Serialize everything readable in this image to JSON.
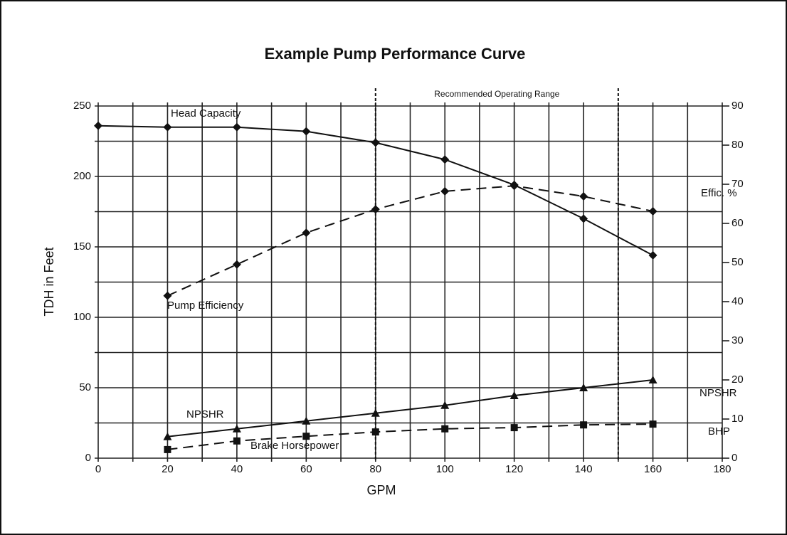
{
  "chart_data": {
    "type": "line",
    "title": "Example Pump Performance Curve",
    "x_label": "GPM",
    "y_label": "TDH in Feet",
    "x": [
      0,
      20,
      40,
      60,
      80,
      100,
      120,
      140,
      160
    ],
    "series": [
      {
        "name": "Head Capacity",
        "color": "#111111",
        "marker": "diamond",
        "dash": "solid",
        "axis": "y",
        "values": [
          236,
          235,
          235,
          232,
          224,
          212,
          194,
          170,
          144
        ]
      },
      {
        "name": "Pump Efficiency",
        "color": "#111111",
        "marker": "diamond",
        "dash": "dashed",
        "axis": "y2",
        "values": [
          null,
          41.5,
          49.5,
          57.6,
          63.6,
          68.2,
          69.6,
          66.9,
          63.1
        ]
      },
      {
        "name": "NPSHR",
        "color": "#111111",
        "marker": "triangle",
        "dash": "solid",
        "axis": "y2",
        "values": [
          null,
          5.5,
          7.5,
          9.5,
          11.5,
          13.5,
          16,
          18,
          20
        ]
      },
      {
        "name": "Brake Horsepower",
        "color": "#111111",
        "marker": "square",
        "dash": "dashed",
        "axis": "y2",
        "values": [
          null,
          2.2,
          4.4,
          5.6,
          6.7,
          7.5,
          7.8,
          8.5,
          8.7
        ]
      }
    ],
    "xlim": [
      0,
      180
    ],
    "xticks": [
      0,
      20,
      40,
      60,
      80,
      100,
      120,
      140,
      160,
      180
    ],
    "xminorticks": [
      10,
      30,
      50,
      70,
      90,
      110,
      130,
      150,
      170
    ],
    "ylim": [
      0,
      250
    ],
    "yticks": [
      0,
      50,
      100,
      150,
      200,
      250
    ],
    "yminorticks": [
      25,
      75,
      125,
      175,
      225
    ],
    "y2lim": [
      0,
      90
    ],
    "y2ticks": [
      0,
      10,
      20,
      30,
      40,
      50,
      60,
      70,
      80,
      90
    ],
    "grid": true,
    "operating_range": {
      "label": "Recommended Operating Range",
      "from": 80,
      "to": 150
    },
    "annotations": [
      "Effic. %",
      "NPSHR",
      "BHP"
    ]
  }
}
